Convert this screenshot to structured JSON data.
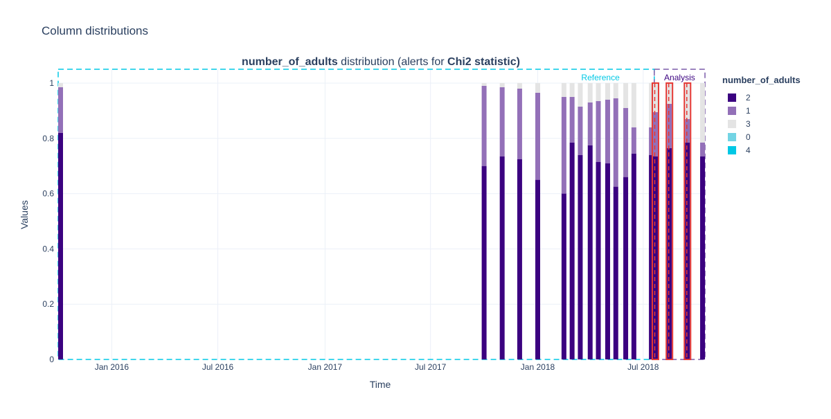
{
  "page": {
    "title": "Column distributions"
  },
  "chart_data": {
    "type": "bar",
    "stacked": true,
    "title_parts": [
      {
        "text": "number_of_adults",
        "bold": true
      },
      {
        "text": " distribution (alerts for ",
        "bold": false
      },
      {
        "text": "Chi2 statistic)",
        "bold": true
      }
    ],
    "xlabel": "Time",
    "ylabel": "Values",
    "ylim": [
      0,
      1.05
    ],
    "yticks": [
      {
        "value": 0,
        "label": "0"
      },
      {
        "value": 0.2,
        "label": "0.2"
      },
      {
        "value": 0.4,
        "label": "0.4"
      },
      {
        "value": 0.6,
        "label": "0.6"
      },
      {
        "value": 0.8,
        "label": "0.8"
      },
      {
        "value": 1,
        "label": "1"
      }
    ],
    "xrange": [
      "2015-10-01",
      "2018-10-15"
    ],
    "xticks": [
      {
        "date": "2016-01-01",
        "label": "Jan 2016"
      },
      {
        "date": "2016-07-01",
        "label": "Jul 2016"
      },
      {
        "date": "2017-01-01",
        "label": "Jan 2017"
      },
      {
        "date": "2017-07-01",
        "label": "Jul 2017"
      },
      {
        "date": "2018-01-01",
        "label": "Jan 2018"
      },
      {
        "date": "2018-07-01",
        "label": "Jul 2018"
      }
    ],
    "legend": {
      "title": "number_of_adults",
      "position": "right",
      "items": [
        {
          "label": "2",
          "color": "#3b0280"
        },
        {
          "label": "1",
          "color": "#9370b8"
        },
        {
          "label": "3",
          "color": "#e4e4e4"
        },
        {
          "label": "0",
          "color": "#73d4e4"
        },
        {
          "label": "4",
          "color": "#00c8e5"
        }
      ]
    },
    "series_colors": {
      "2": "#3b0280",
      "1": "#9370b8",
      "3": "#e4e4e4",
      "0": "#73d4e4",
      "4": "#00c8e5"
    },
    "periods": [
      {
        "label": "Reference",
        "start": "2015-10-01",
        "end": "2018-07-20",
        "color": "#00c8e5",
        "labelColor": "#00c8e5"
      },
      {
        "label": "Analysis",
        "start": "2018-07-20",
        "end": "2018-10-15",
        "color": "#7a5aa8",
        "labelColor": "#3b0280"
      }
    ],
    "bars": [
      {
        "date": "2015-10-01",
        "v2": 0.82,
        "v1": 0.165,
        "v3": 0.015,
        "v0": 0,
        "v4": 0,
        "alert": false
      },
      {
        "date": "2017-10-01",
        "v2": 0.7,
        "v1": 0.29,
        "v3": 0.01,
        "v0": 0,
        "v4": 0,
        "alert": false
      },
      {
        "date": "2017-11-01",
        "v2": 0.735,
        "v1": 0.25,
        "v3": 0.015,
        "v0": 0,
        "v4": 0,
        "alert": false
      },
      {
        "date": "2017-12-01",
        "v2": 0.725,
        "v1": 0.255,
        "v3": 0.02,
        "v0": 0,
        "v4": 0,
        "alert": false
      },
      {
        "date": "2018-01-01",
        "v2": 0.65,
        "v1": 0.315,
        "v3": 0.035,
        "v0": 0,
        "v4": 0,
        "alert": false
      },
      {
        "date": "2018-02-15",
        "v2": 0.6,
        "v1": 0.35,
        "v3": 0.05,
        "v0": 0,
        "v4": 0,
        "alert": false
      },
      {
        "date": "2018-03-01",
        "v2": 0.785,
        "v1": 0.165,
        "v3": 0.05,
        "v0": 0,
        "v4": 0,
        "alert": false
      },
      {
        "date": "2018-03-15",
        "v2": 0.74,
        "v1": 0.175,
        "v3": 0.085,
        "v0": 0,
        "v4": 0,
        "alert": false
      },
      {
        "date": "2018-04-01",
        "v2": 0.775,
        "v1": 0.155,
        "v3": 0.07,
        "v0": 0,
        "v4": 0,
        "alert": false
      },
      {
        "date": "2018-04-15",
        "v2": 0.715,
        "v1": 0.22,
        "v3": 0.065,
        "v0": 0,
        "v4": 0,
        "alert": false
      },
      {
        "date": "2018-05-01",
        "v2": 0.71,
        "v1": 0.23,
        "v3": 0.06,
        "v0": 0,
        "v4": 0,
        "alert": false
      },
      {
        "date": "2018-05-15",
        "v2": 0.625,
        "v1": 0.32,
        "v3": 0.055,
        "v0": 0,
        "v4": 0,
        "alert": false
      },
      {
        "date": "2018-06-01",
        "v2": 0.66,
        "v1": 0.25,
        "v3": 0.09,
        "v0": 0,
        "v4": 0,
        "alert": false
      },
      {
        "date": "2018-06-15",
        "v2": 0.745,
        "v1": 0.095,
        "v3": 0.16,
        "v0": 0,
        "v4": 0,
        "alert": false
      },
      {
        "date": "2018-07-15",
        "v2": 0.74,
        "v1": 0.1,
        "v3": 0.16,
        "v0": 0,
        "v4": 0,
        "alert": false
      },
      {
        "date": "2018-07-22",
        "v2": 0.735,
        "v1": 0.16,
        "v3": 0.105,
        "v0": 0,
        "v4": 0,
        "alert": true
      },
      {
        "date": "2018-08-15",
        "v2": 0.765,
        "v1": 0.16,
        "v3": 0.075,
        "v0": 0,
        "v4": 0,
        "alert": true
      },
      {
        "date": "2018-09-15",
        "v2": 0.785,
        "v1": 0.085,
        "v3": 0.13,
        "v0": 0,
        "v4": 0,
        "alert": true
      },
      {
        "date": "2018-10-15",
        "v2": 0.735,
        "v1": 0.05,
        "v3": 0.215,
        "v0": 0,
        "v4": 0,
        "alert": false
      }
    ]
  }
}
